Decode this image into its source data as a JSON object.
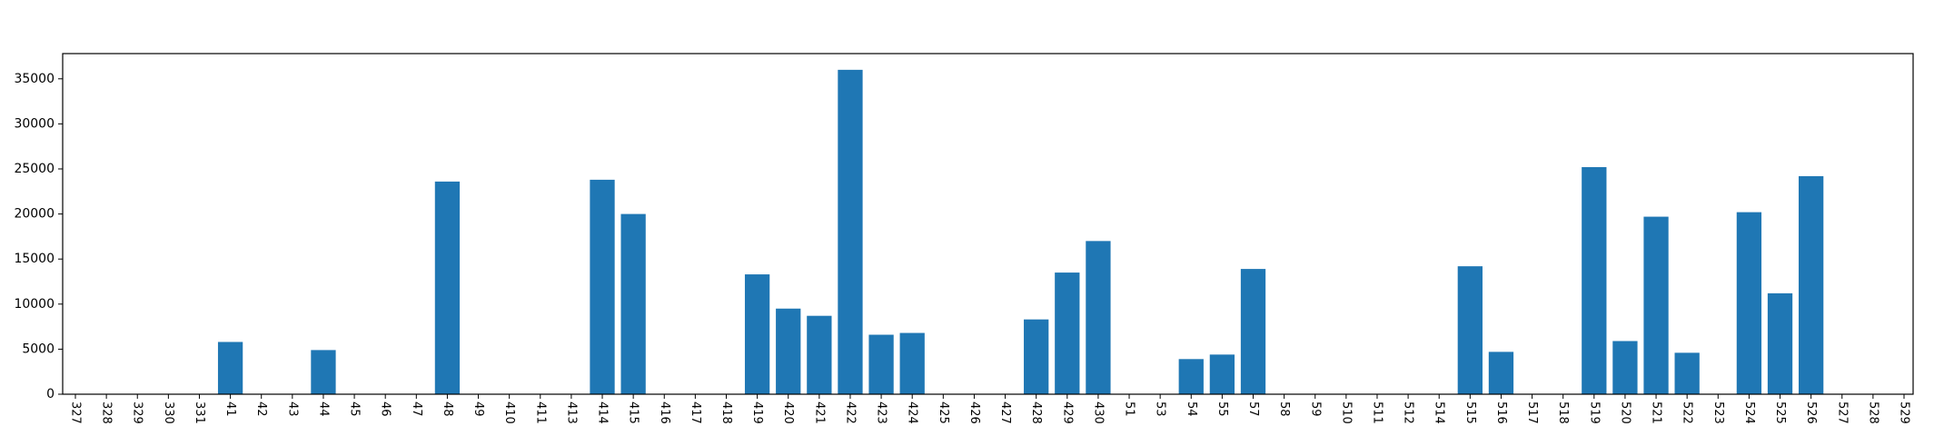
{
  "chart_data": {
    "type": "bar",
    "title": "",
    "xlabel": "",
    "ylabel": "",
    "ylim": [
      0,
      37800
    ],
    "yticks": [
      0,
      5000,
      10000,
      15000,
      20000,
      25000,
      30000,
      35000
    ],
    "grid": false,
    "legend": "none",
    "bar_color": "#1f77b4",
    "categories": [
      "327",
      "328",
      "329",
      "330",
      "331",
      "41",
      "42",
      "43",
      "44",
      "45",
      "46",
      "47",
      "48",
      "49",
      "410",
      "411",
      "413",
      "414",
      "415",
      "416",
      "417",
      "418",
      "419",
      "420",
      "421",
      "422",
      "423",
      "424",
      "425",
      "426",
      "427",
      "428",
      "429",
      "430",
      "51",
      "53",
      "54",
      "55",
      "57",
      "58",
      "59",
      "510",
      "511",
      "512",
      "514",
      "515",
      "516",
      "517",
      "518",
      "519",
      "520",
      "521",
      "522",
      "523",
      "524",
      "525",
      "526",
      "527",
      "528",
      "529"
    ],
    "values": [
      0,
      0,
      0,
      0,
      0,
      5800,
      0,
      0,
      4900,
      0,
      0,
      0,
      23600,
      0,
      0,
      0,
      0,
      23800,
      20000,
      0,
      0,
      0,
      13300,
      9500,
      8700,
      36000,
      6600,
      6800,
      0,
      0,
      0,
      8300,
      13500,
      17000,
      0,
      0,
      3900,
      4400,
      13900,
      0,
      0,
      0,
      0,
      0,
      0,
      14200,
      4700,
      0,
      0,
      25200,
      5900,
      19700,
      4600,
      0,
      20200,
      11200,
      24200,
      0,
      0,
      0
    ]
  }
}
